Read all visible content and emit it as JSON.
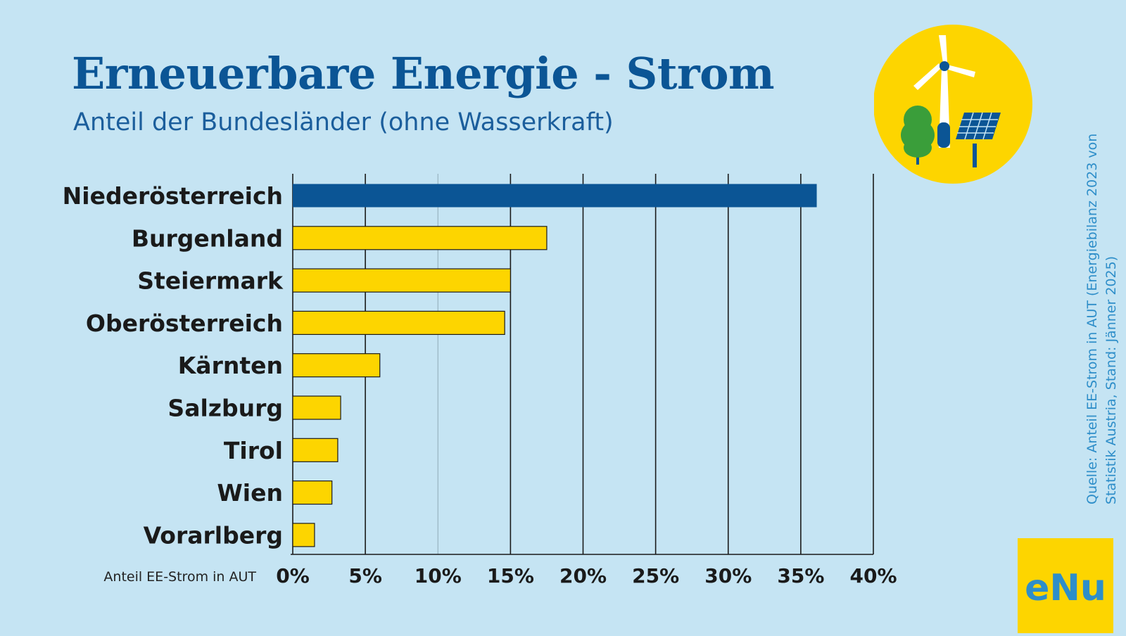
{
  "header": {
    "title": "Erneuerbare Energie - Strom",
    "subtitle": "Anteil der Bundesländer (ohne Wasserkraft)"
  },
  "source": {
    "line1": "Quelle: Anteil EE-Strom in AUT (Energiebilanz 2023 von",
    "line2": "Statistik Austria, Stand: Jänner 2025)"
  },
  "icons": {
    "badge": "wind-turbine-tree-solar-icon",
    "logo": "enu-logo"
  },
  "logo_text": "eNu",
  "colors": {
    "background": "#c5e4f3",
    "highlight": "#0b5595",
    "bar": "#fdd500",
    "title": "#0b5595",
    "source": "#2e8ec9",
    "badge": "#fdd500"
  },
  "chart_data": {
    "type": "bar",
    "orientation": "horizontal",
    "categories": [
      "Niederösterreich",
      "Burgenland",
      "Steiermark",
      "Oberösterreich",
      "Kärnten",
      "Salzburg",
      "Tirol",
      "Wien",
      "Vorarlberg"
    ],
    "values": [
      36.1,
      17.5,
      15.0,
      14.6,
      6.0,
      3.3,
      3.1,
      2.7,
      1.5
    ],
    "highlight_index": 0,
    "xlabel": "Anteil EE-Strom in AUT",
    "xlim": [
      0,
      40
    ],
    "xticks": [
      "0%",
      "5%",
      "10%",
      "15%",
      "20%",
      "25%",
      "30%",
      "35%",
      "40%"
    ],
    "grid": true
  }
}
